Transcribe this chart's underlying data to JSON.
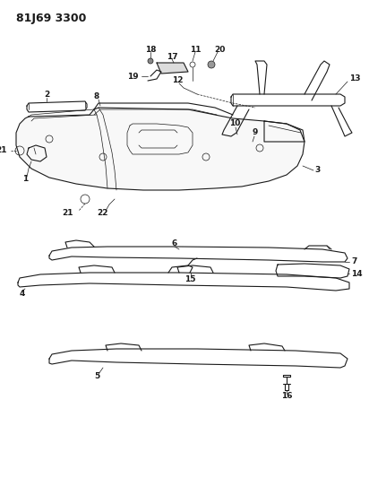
{
  "title": "81J69 3300",
  "bg_color": "#ffffff",
  "line_color": "#1a1a1a",
  "title_fontsize": 9,
  "label_fontsize": 6.5,
  "figsize": [
    4.12,
    5.33
  ],
  "dpi": 100
}
